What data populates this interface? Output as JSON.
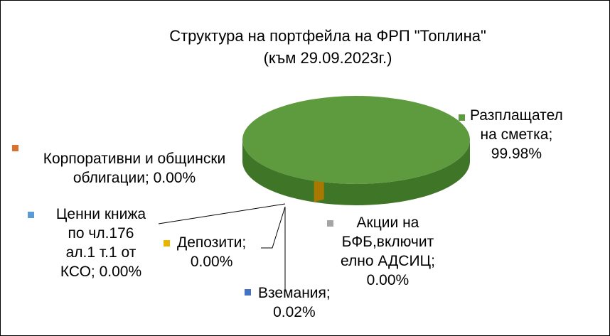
{
  "chart_data": {
    "type": "pie",
    "title": "Структура  на портфейла на ФРП \"Топлина\"",
    "subtitle": "(към 29.09.2023г.)",
    "slices": [
      {
        "label": "Разплащател на сметка",
        "label_lines": [
          "Разплащател",
          "на сметка;"
        ],
        "value_text": "99.98%",
        "value": 99.98,
        "color": "#5e9a3e",
        "side_color": "#3f7526"
      },
      {
        "label": "Вземания",
        "label_lines": [
          "Вземания;"
        ],
        "value_text": "0.02%",
        "value": 0.02,
        "color": "#4472c4",
        "side_color": "#2e4f8f"
      },
      {
        "label": "Депозити",
        "label_lines": [
          "Депозити;"
        ],
        "value_text": "0.00%",
        "value": 0.0,
        "color": "#e8b400",
        "side_color": "#b08500"
      },
      {
        "label": "Ценни книжа по чл.176 ал.1 т.1 от КСО",
        "label_lines": [
          "Ценни книжа",
          "по чл.176",
          "ал.1 т.1 от"
        ],
        "value_text": "КСО; 0.00%",
        "value": 0.0,
        "color": "#5b9bd5",
        "side_color": "#3a78b0"
      },
      {
        "label": "Корпоративни и общински облигации",
        "label_lines": [
          "Корпоративни и общински"
        ],
        "value_text": "облигации; 0.00%",
        "value": 0.0,
        "color": "#d9722e",
        "side_color": "#b0561b"
      },
      {
        "label": "Акции на БФБ,включително АДСИЦ",
        "label_lines": [
          "Акции на",
          "БФБ,включит",
          "елно АДСИЦ;"
        ],
        "value_text": "0.00%",
        "value": 0.0,
        "color": "#a5a5a5",
        "side_color": "#7f7f7f"
      }
    ],
    "legend": "none",
    "data_labels": "outside with leader lines"
  }
}
